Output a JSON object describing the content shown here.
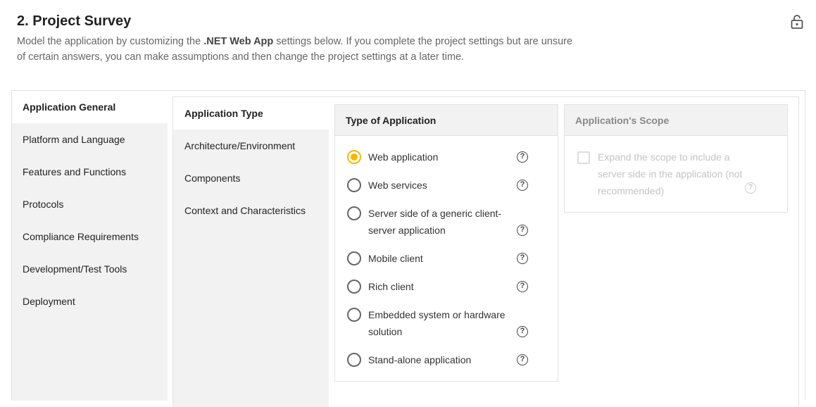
{
  "header": {
    "title": "2. Project Survey",
    "desc_pre": "Model the application by customizing the ",
    "desc_bold": ".NET Web App",
    "desc_post": " settings below. If you complete the project settings but are unsure of certain answers, you can make assumptions and then change the project settings at a later time.",
    "lock_icon": "lock-icon"
  },
  "nav1": [
    {
      "label": "Application General",
      "active": true
    },
    {
      "label": "Platform and Language"
    },
    {
      "label": "Features and Functions"
    },
    {
      "label": "Protocols"
    },
    {
      "label": "Compliance Requirements"
    },
    {
      "label": "Development/Test Tools"
    },
    {
      "label": "Deployment"
    }
  ],
  "nav2": [
    {
      "label": "Application Type",
      "active": true
    },
    {
      "label": "Architecture/Environment"
    },
    {
      "label": "Components"
    },
    {
      "label": "Context and Characteristics"
    }
  ],
  "type_panel": {
    "title": "Type of Application",
    "options": [
      {
        "label": "Web application",
        "selected": true
      },
      {
        "label": "Web services"
      },
      {
        "label": "Server side of a generic client-server application"
      },
      {
        "label": "Mobile client"
      },
      {
        "label": "Rich client"
      },
      {
        "label": "Embedded system or hardware solution"
      },
      {
        "label": "Stand-alone application"
      }
    ],
    "accent": "#f5b800"
  },
  "scope_panel": {
    "title": "Application's Scope",
    "checkbox_label": "Expand the scope to include a server side in the application (not recommended)",
    "checked": false,
    "disabled": true
  },
  "help_glyph": "?"
}
